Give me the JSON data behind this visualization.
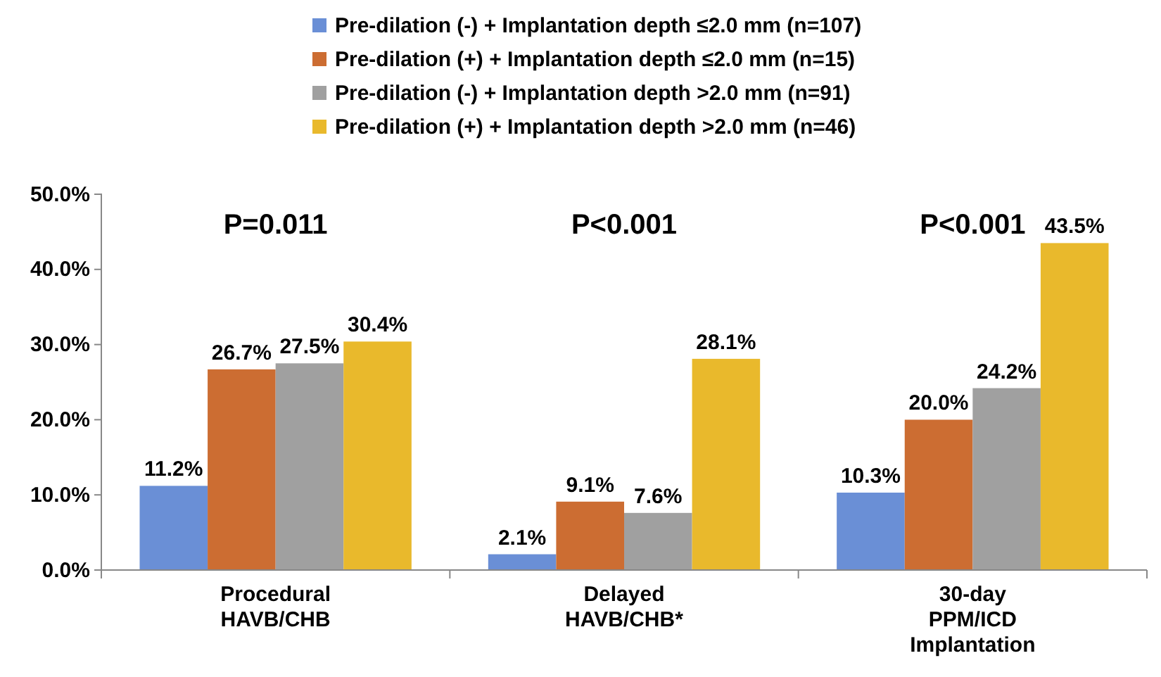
{
  "chart_data": {
    "type": "bar",
    "categories": [
      "Procedural\nHAVB/CHB",
      "Delayed\nHAVB/CHB*",
      "30-day\nPPM/ICD\nImplantation"
    ],
    "series": [
      {
        "name": "Pre-dilation (-) + Implantation depth ≤2.0 mm (n=107)",
        "color": "#6a8fd6",
        "values": [
          11.2,
          2.1,
          10.3
        ],
        "value_labels": [
          "11.2%",
          "2.1%",
          "10.3%"
        ]
      },
      {
        "name": "Pre-dilation (+) + Implantation depth ≤2.0 mm (n=15)",
        "color": "#cc6d32",
        "values": [
          26.7,
          9.1,
          20.0
        ],
        "value_labels": [
          "26.7%",
          "9.1%",
          "20.0%"
        ]
      },
      {
        "name": "Pre-dilation (-) + Implantation depth >2.0 mm (n=91)",
        "color": "#a0a0a0",
        "values": [
          27.5,
          7.6,
          24.2
        ],
        "value_labels": [
          "27.5%",
          "7.6%",
          "24.2%"
        ]
      },
      {
        "name": "Pre-dilation (+) + Implantation depth >2.0 mm (n=46)",
        "color": "#e9b92c",
        "values": [
          30.4,
          28.1,
          43.5
        ],
        "value_labels": [
          "30.4%",
          "28.1%",
          "43.5%"
        ]
      }
    ],
    "ylim": [
      0,
      50
    ],
    "yticks": [
      {
        "value": 0,
        "label": "0.0%"
      },
      {
        "value": 10,
        "label": "10.0%"
      },
      {
        "value": 20,
        "label": "20.0%"
      },
      {
        "value": 30,
        "label": "30.0%"
      },
      {
        "value": 40,
        "label": "40.0%"
      },
      {
        "value": 50,
        "label": "50.0%"
      }
    ],
    "annotations": [
      "P=0.011",
      "P<0.001",
      "P<0.001"
    ],
    "legend": "top",
    "grid": false
  }
}
